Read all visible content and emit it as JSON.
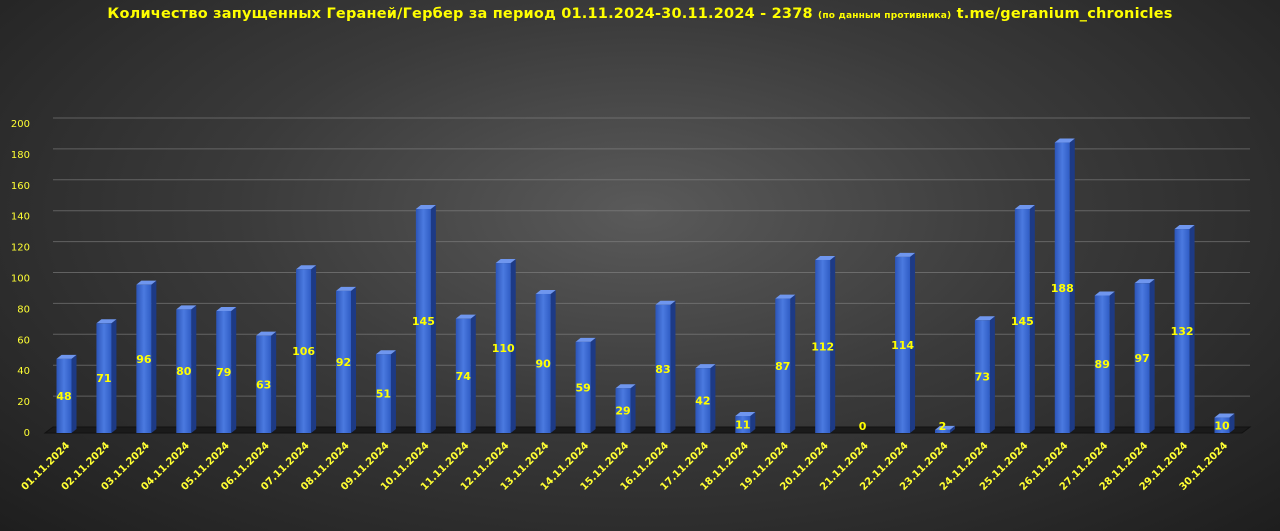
{
  "chart_data": {
    "type": "bar",
    "title_main": "Количество запущенных Гераней/Гербер  за период  01.11.2024-30.11.2024  - 2378",
    "title_note": "(по данным противника)",
    "title_link": "t.me/geranium_chronicles",
    "categories": [
      "01.11.2024",
      "02.11.2024",
      "03.11.2024",
      "04.11.2024",
      "05.11.2024",
      "06.11.2024",
      "07.11.2024",
      "08.11.2024",
      "09.11.2024",
      "10.11.2024",
      "11.11.2024",
      "12.11.2024",
      "13.11.2024",
      "14.11.2024",
      "15.11.2024",
      "16.11.2024",
      "17.11.2024",
      "18.11.2024",
      "19.11.2024",
      "20.11.2024",
      "21.11.2024",
      "22.11.2024",
      "23.11.2024",
      "24.11.2024",
      "25.11.2024",
      "26.11.2024",
      "27.11.2024",
      "28.11.2024",
      "29.11.2024",
      "30.11.2024"
    ],
    "values": [
      48,
      71,
      96,
      80,
      79,
      63,
      106,
      92,
      51,
      145,
      74,
      110,
      90,
      59,
      29,
      83,
      42,
      11,
      87,
      112,
      0,
      114,
      2,
      73,
      145,
      188,
      89,
      97,
      132,
      10
    ],
    "ylim": [
      0,
      200
    ],
    "yticks": [
      "0",
      "20",
      "40",
      "60",
      "80",
      "100",
      "120",
      "140",
      "160",
      "180",
      "200"
    ],
    "grid": true,
    "bar_color": "#3a66c8",
    "label_color": "#ffff00"
  }
}
